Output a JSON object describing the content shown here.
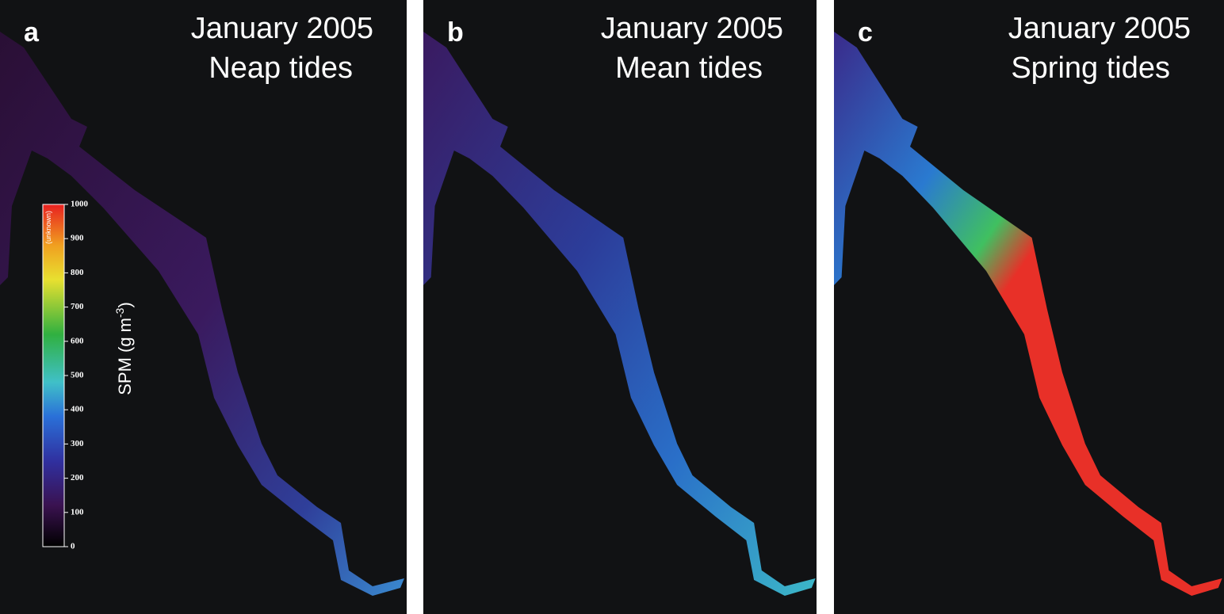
{
  "panels": [
    {
      "label": "a",
      "title": "January 2005",
      "subtitle": "Neap tides"
    },
    {
      "label": "b",
      "title": "January 2005",
      "subtitle": "Mean tides"
    },
    {
      "label": "c",
      "title": "January 2005",
      "subtitle": "Spring tides"
    }
  ],
  "colorbar": {
    "lim": [
      0,
      1000
    ],
    "ticks": [
      0,
      100,
      200,
      300,
      400,
      500,
      600,
      700,
      800,
      900,
      1000
    ],
    "unknown_label": "(unknown)",
    "axis_label": "SPM (g m",
    "axis_label_superscript": "-3",
    "axis_label_end": ")"
  }
}
